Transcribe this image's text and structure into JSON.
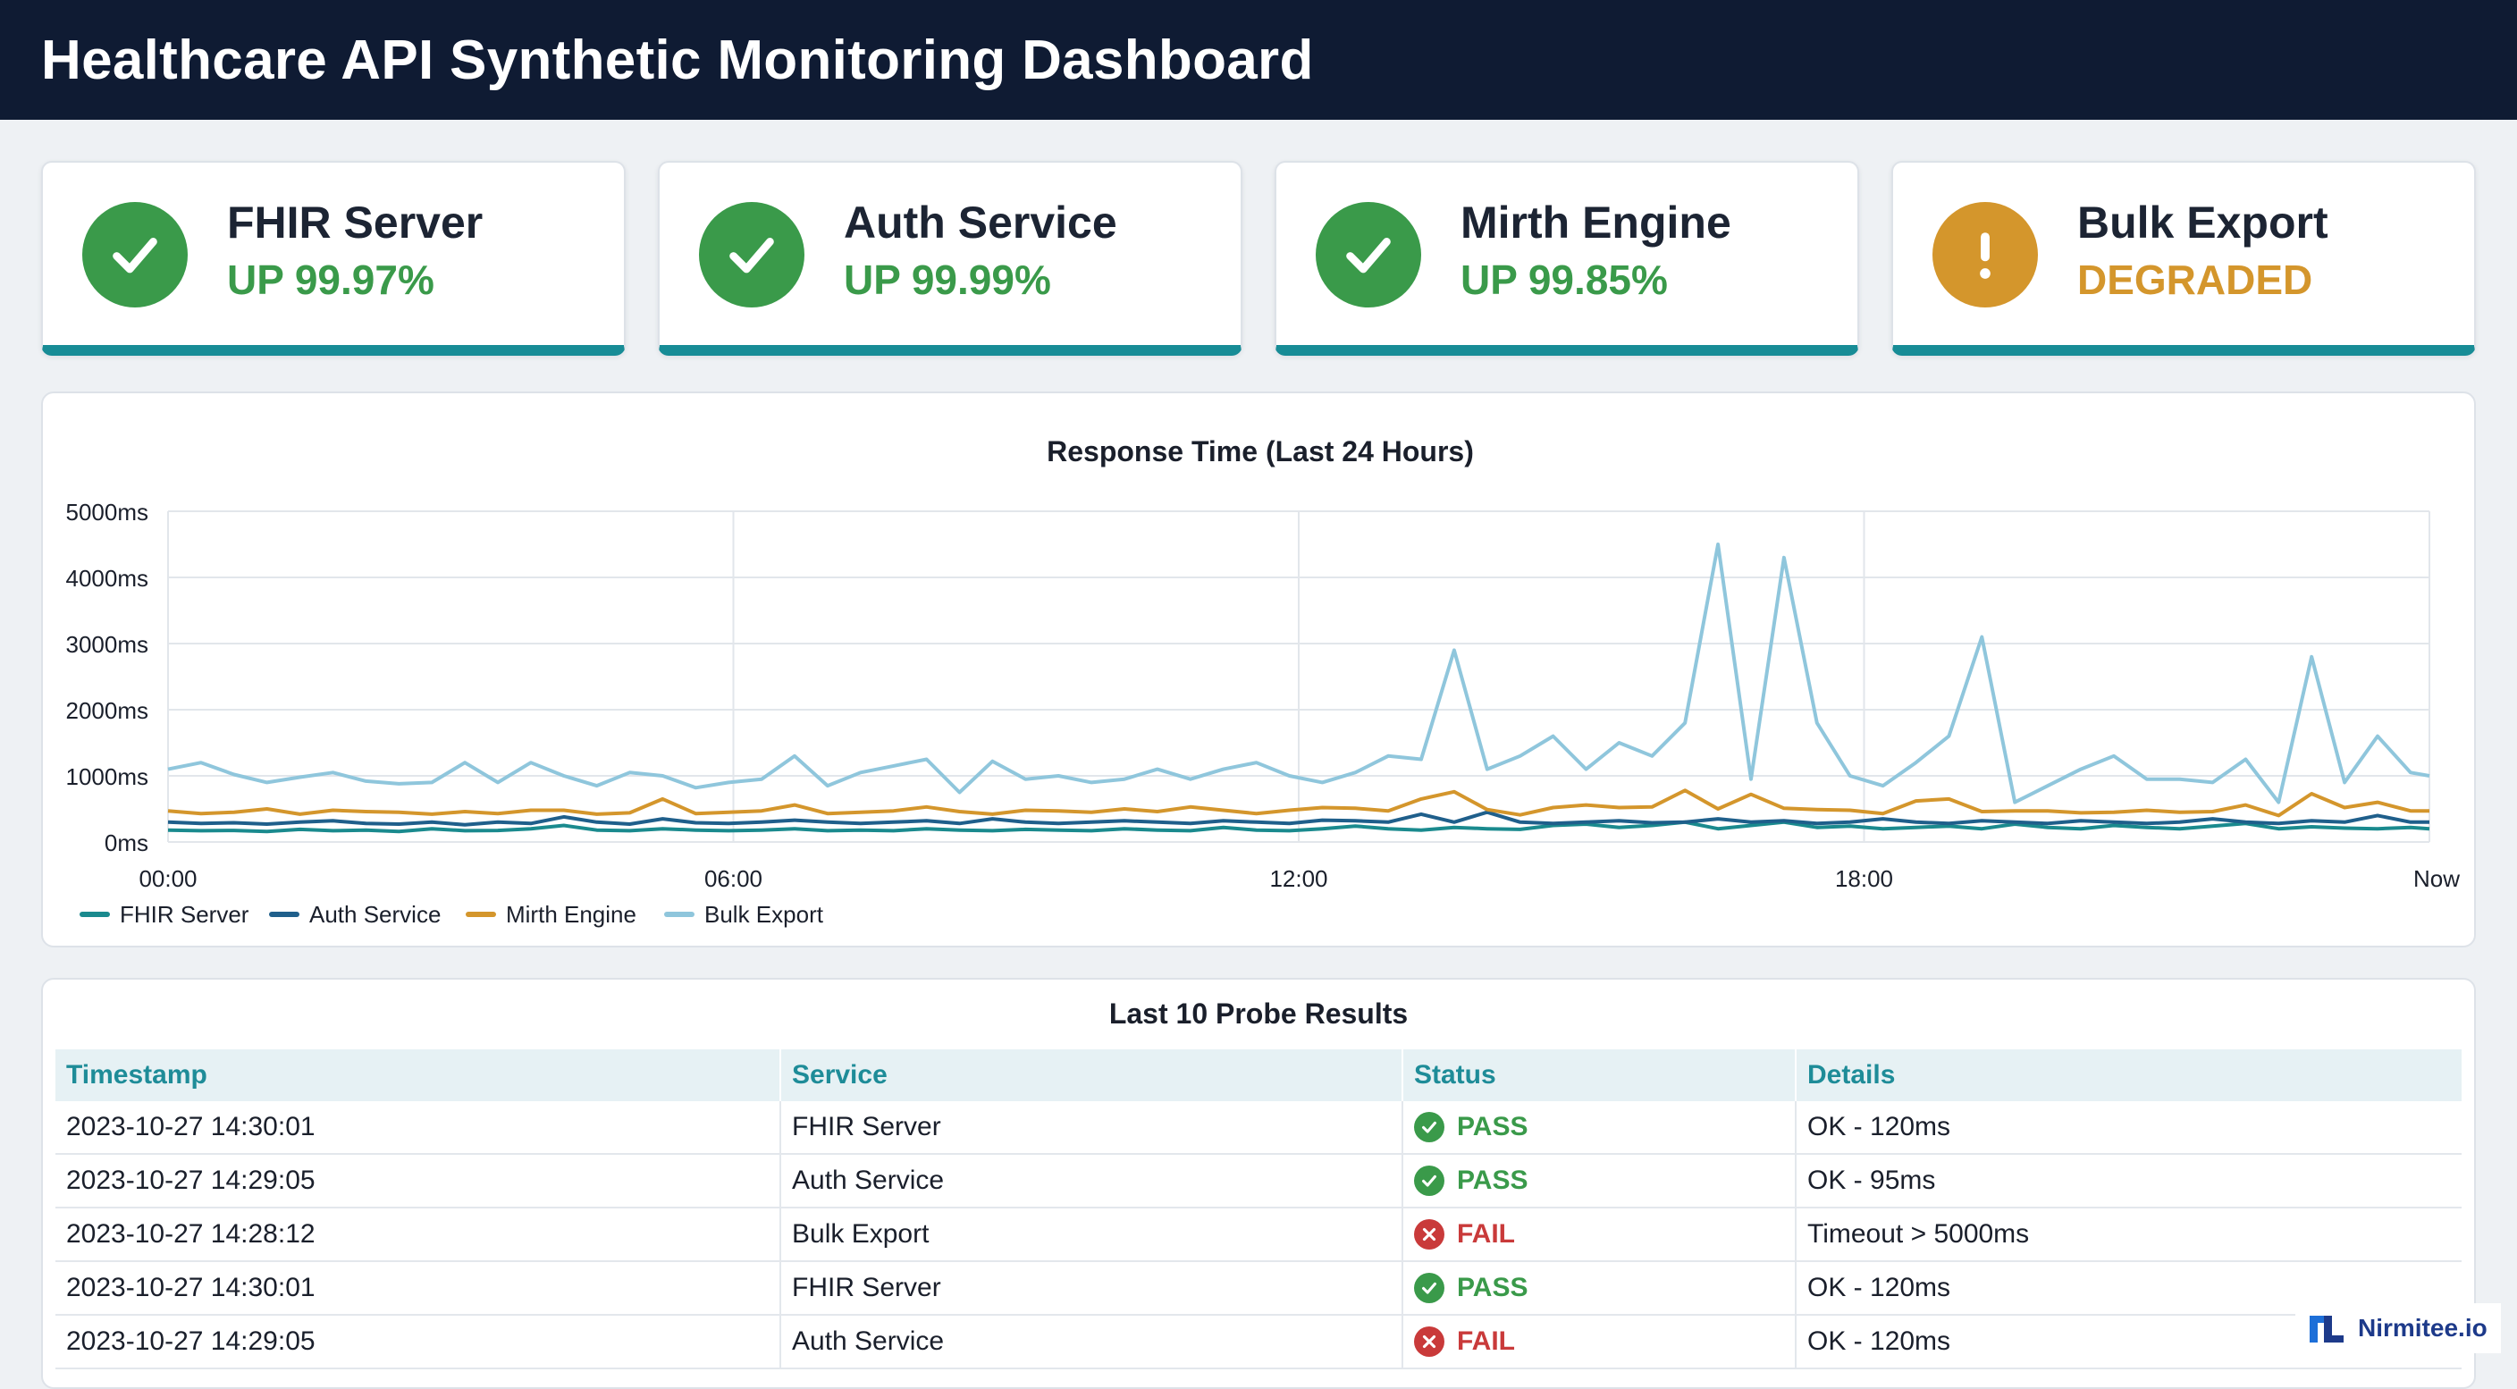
{
  "header": {
    "title": "Healthcare API Synthetic Monitoring Dashboard"
  },
  "cards": [
    {
      "name": "FHIR Server",
      "status": "UP 99.97%",
      "state": "ok",
      "icon": "check-icon",
      "color": "#3a9a4a"
    },
    {
      "name": "Auth Service",
      "status": "UP 99.99%",
      "state": "ok",
      "icon": "check-icon",
      "color": "#3a9a4a"
    },
    {
      "name": "Mirth Engine",
      "status": "UP 99.85%",
      "state": "ok",
      "icon": "check-icon",
      "color": "#3a9a4a"
    },
    {
      "name": "Bulk Export",
      "status": "DEGRADED",
      "state": "warn",
      "icon": "exclamation-icon",
      "color": "#d4962c"
    }
  ],
  "chart_data": {
    "type": "line",
    "title": "Response Time (Last 24 Hours)",
    "xlabel": "",
    "ylabel": "",
    "ylim": [
      0,
      5000
    ],
    "xlim": [
      0,
      24
    ],
    "y_ticks": [
      "0ms",
      "1000ms",
      "2000ms",
      "3000ms",
      "4000ms",
      "5000ms"
    ],
    "x_ticks": [
      {
        "x": 0,
        "label": "00:00"
      },
      {
        "x": 6,
        "label": "06:00"
      },
      {
        "x": 12,
        "label": "12:00"
      },
      {
        "x": 18,
        "label": "18:00"
      },
      {
        "x": 24,
        "label": "Now"
      }
    ],
    "grid": true,
    "legend_position": "bottom-left",
    "x": [
      0,
      0.35,
      0.7,
      1.05,
      1.4,
      1.75,
      2.1,
      2.45,
      2.8,
      3.15,
      3.5,
      3.85,
      4.2,
      4.55,
      4.9,
      5.25,
      5.6,
      5.95,
      6.3,
      6.65,
      7.0,
      7.35,
      7.7,
      8.05,
      8.4,
      8.75,
      9.1,
      9.45,
      9.8,
      10.15,
      10.5,
      10.85,
      11.2,
      11.55,
      11.9,
      12.25,
      12.6,
      12.95,
      13.3,
      13.65,
      14.0,
      14.35,
      14.7,
      15.05,
      15.4,
      15.75,
      16.1,
      16.45,
      16.8,
      17.15,
      17.5,
      17.85,
      18.2,
      18.55,
      18.9,
      19.25,
      19.6,
      19.95,
      20.3,
      20.65,
      21.0,
      21.35,
      21.7,
      22.05,
      22.4,
      22.75,
      23.1,
      23.45,
      23.8,
      24
    ],
    "series": [
      {
        "name": "FHIR Server",
        "color": "#1a8a8e",
        "values": [
          180,
          170,
          175,
          160,
          190,
          170,
          180,
          160,
          200,
          170,
          175,
          200,
          250,
          180,
          170,
          200,
          180,
          170,
          180,
          200,
          170,
          180,
          170,
          200,
          180,
          170,
          190,
          180,
          170,
          200,
          180,
          170,
          220,
          180,
          170,
          200,
          240,
          200,
          180,
          220,
          200,
          190,
          250,
          270,
          220,
          250,
          300,
          200,
          250,
          300,
          220,
          240,
          200,
          220,
          240,
          200,
          270,
          220,
          200,
          250,
          220,
          200,
          240,
          280,
          200,
          230,
          210,
          200,
          220,
          200
        ]
      },
      {
        "name": "Auth Service",
        "color": "#1f5f8b",
        "values": [
          300,
          280,
          290,
          270,
          300,
          320,
          280,
          270,
          300,
          260,
          300,
          280,
          380,
          300,
          270,
          350,
          290,
          280,
          300,
          330,
          300,
          280,
          300,
          320,
          280,
          350,
          300,
          280,
          300,
          320,
          300,
          280,
          320,
          300,
          280,
          330,
          320,
          300,
          420,
          300,
          450,
          300,
          280,
          300,
          320,
          290,
          300,
          350,
          300,
          320,
          280,
          300,
          350,
          300,
          280,
          320,
          300,
          280,
          320,
          300,
          280,
          300,
          350,
          300,
          280,
          320,
          300,
          400,
          300,
          300
        ]
      },
      {
        "name": "Mirth Engine",
        "color": "#d4962c",
        "values": [
          470,
          430,
          450,
          500,
          420,
          480,
          460,
          450,
          420,
          460,
          430,
          480,
          480,
          420,
          440,
          650,
          430,
          450,
          470,
          560,
          430,
          450,
          470,
          530,
          460,
          420,
          480,
          470,
          450,
          500,
          460,
          530,
          480,
          430,
          480,
          520,
          510,
          470,
          650,
          760,
          490,
          410,
          520,
          560,
          520,
          530,
          780,
          500,
          720,
          510,
          490,
          480,
          430,
          620,
          650,
          460,
          470,
          470,
          440,
          450,
          480,
          450,
          460,
          560,
          400,
          730,
          520,
          600,
          470,
          470
        ]
      },
      {
        "name": "Bulk Export",
        "color": "#8fc6dc",
        "values": [
          1100,
          1200,
          1020,
          900,
          980,
          1050,
          920,
          880,
          900,
          1200,
          900,
          1200,
          1000,
          850,
          1050,
          1000,
          820,
          900,
          950,
          1300,
          850,
          1050,
          1150,
          1250,
          750,
          1220,
          950,
          1000,
          900,
          950,
          1100,
          950,
          1100,
          1200,
          1000,
          900,
          1050,
          1300,
          1250,
          2900,
          1100,
          1300,
          1600,
          1100,
          1500,
          1300,
          1800,
          4500,
          950,
          4300,
          1800,
          1000,
          850,
          1200,
          1600,
          3100,
          600,
          850,
          1100,
          1300,
          950,
          950,
          900,
          1250,
          600,
          2800,
          900,
          1600,
          1050,
          1000
        ]
      }
    ]
  },
  "table": {
    "title": "Last 10 Probe Results",
    "columns": [
      "Timestamp",
      "Service",
      "Status",
      "Details"
    ],
    "rows": [
      {
        "timestamp": "2023-10-27 14:30:01",
        "service": "FHIR Server",
        "status": "PASS",
        "details": "OK - 120ms"
      },
      {
        "timestamp": "2023-10-27 14:29:05",
        "service": "Auth Service",
        "status": "PASS",
        "details": "OK - 95ms"
      },
      {
        "timestamp": "2023-10-27 14:28:12",
        "service": "Bulk Export",
        "status": "FAIL",
        "details": "Timeout > 5000ms"
      },
      {
        "timestamp": "2023-10-27 14:30:01",
        "service": "FHIR Server",
        "status": "PASS",
        "details": "OK - 120ms"
      },
      {
        "timestamp": "2023-10-27 14:29:05",
        "service": "Auth Service",
        "status": "FAIL",
        "details": "OK - 120ms"
      }
    ],
    "pass_color": "#3a9a4a",
    "fail_color": "#c93a3a"
  },
  "brand": {
    "name": "Nirmitee.io",
    "color": "#1d3a8a"
  }
}
